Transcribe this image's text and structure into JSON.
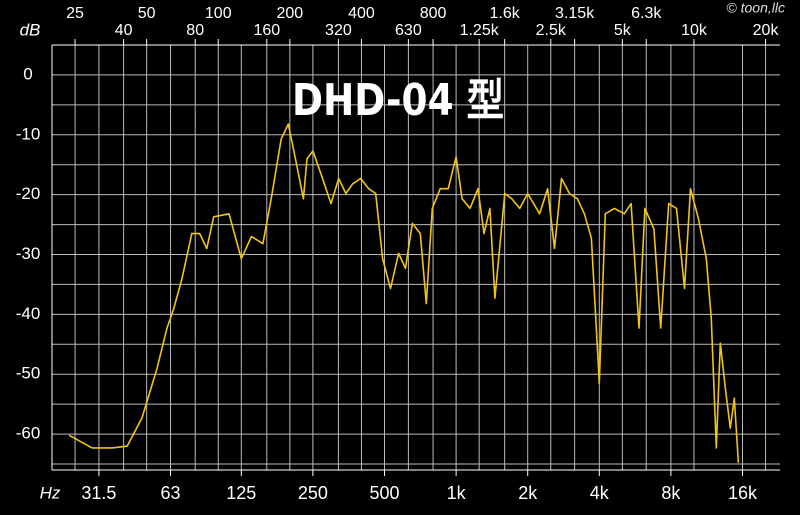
{
  "chart_data": {
    "type": "line",
    "title": "DHD-04 型",
    "credit": "© toon,llc",
    "xlabel": "Hz",
    "ylabel": "dB",
    "xscale": "log",
    "grid": true,
    "xlim": [
      20,
      23000
    ],
    "ylim": [
      -66,
      5
    ],
    "xticks": [
      31.5,
      63,
      125,
      250,
      500,
      {
        "value": 1000,
        "label": "1k"
      },
      {
        "value": 2000,
        "label": "2k"
      },
      {
        "value": 4000,
        "label": "4k"
      },
      {
        "value": 8000,
        "label": "8k"
      },
      {
        "value": 16000,
        "label": "16k"
      }
    ],
    "top_ticks_upper": [
      25,
      50,
      100,
      200,
      400,
      800,
      {
        "value": 1600,
        "label": "1.6k"
      },
      {
        "value": 3150,
        "label": "3.15k"
      },
      {
        "value": 6300,
        "label": "6.3k"
      }
    ],
    "top_ticks_lower": [
      40,
      80,
      160,
      320,
      630,
      {
        "value": 1250,
        "label": "1.25k"
      },
      {
        "value": 2500,
        "label": "2.5k"
      },
      {
        "value": 5000,
        "label": "5k"
      },
      {
        "value": 10000,
        "label": "10k"
      },
      {
        "value": 20000,
        "label": "20k"
      }
    ],
    "yticks": [
      0,
      -10,
      -20,
      -30,
      -40,
      -50,
      -60
    ],
    "minor_yticks": [
      -5,
      -15,
      -25,
      -35,
      -45,
      -55,
      -65
    ],
    "x": [
      23.6,
      29.5,
      35.8,
      41.4,
      47.8,
      55.3,
      60.9,
      65,
      70.4,
      77.4,
      83.6,
      89.5,
      95.7,
      111,
      125,
      138,
      154,
      167,
      184,
      197,
      213,
      228,
      236,
      250,
      270,
      298,
      321,
      344,
      367,
      397,
      429,
      459,
      491,
      530,
      573,
      612,
      655,
      707,
      749,
      794,
      857,
      926,
      1000,
      1060,
      1144,
      1236,
      1310,
      1387,
      1456,
      1602,
      1714,
      1851,
      2000,
      2245,
      2424,
      2593,
      2774,
      2996,
      3236,
      3463,
      3706,
      4000,
      4237,
      4627,
      5090,
      5442,
      5872,
      6222,
      6788,
      7250,
      7830,
      8448,
      9125,
      9673,
      10440,
      11270,
      11830,
      12420,
      12910,
      13540,
      14220,
      14780,
      15370
    ],
    "series": [
      {
        "name": "DHD-04",
        "color": "#f0c419",
        "values": [
          -60.2,
          -62.3,
          -62.3,
          -62,
          -57.3,
          -49,
          -42.3,
          -39,
          -34,
          -26.5,
          -26.5,
          -29,
          -23.7,
          -23.2,
          -30.7,
          -27,
          -28.2,
          -20.7,
          -10.7,
          -8.2,
          -14.8,
          -20.7,
          -14,
          -12.7,
          -16.5,
          -21.5,
          -17.3,
          -19.8,
          -18.2,
          -17.3,
          -19,
          -19.8,
          -30.7,
          -35.7,
          -29.8,
          -32.3,
          -24.8,
          -26.5,
          -38.2,
          -22.3,
          -19,
          -19,
          -13.7,
          -20.7,
          -22.3,
          -19,
          -26.5,
          -22.3,
          -37.3,
          -19.8,
          -20.7,
          -22.3,
          -19.8,
          -23.2,
          -19,
          -29,
          -17.3,
          -19.8,
          -20.7,
          -23.2,
          -27.3,
          -51.5,
          -23.2,
          -22.3,
          -23.2,
          -21.5,
          -42.3,
          -22.3,
          -25.7,
          -42.3,
          -21.5,
          -22.3,
          -35.7,
          -19,
          -24,
          -30.7,
          -40.7,
          -62.3,
          -44.8,
          -52.3,
          -59,
          -54,
          -64.8
        ]
      }
    ]
  }
}
